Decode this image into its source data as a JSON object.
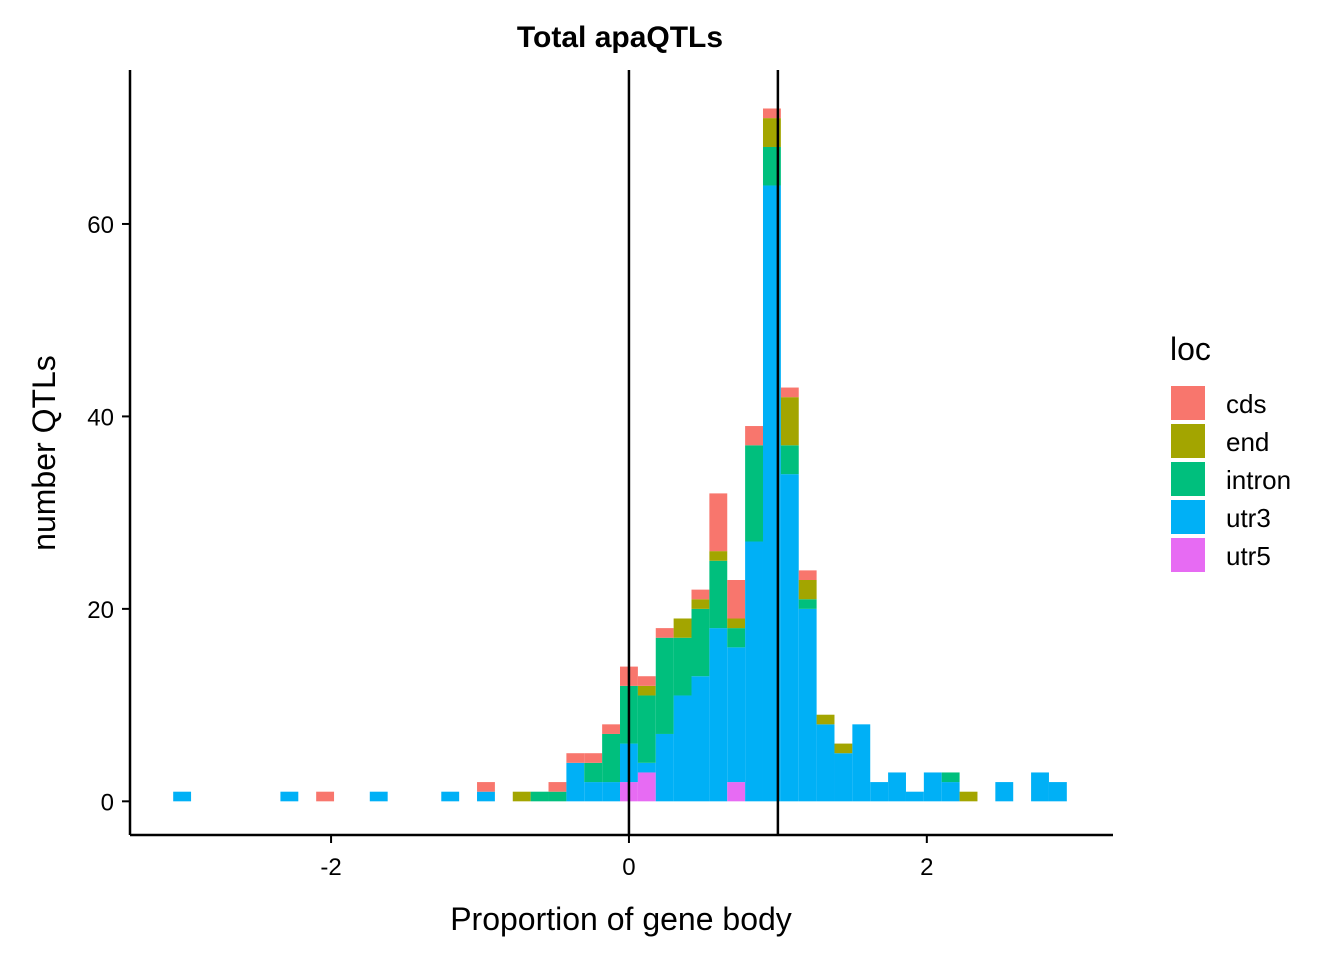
{
  "chart_data": {
    "type": "bar",
    "stacked": true,
    "title": "Total apaQTLs",
    "xlabel": "Proportion of gene body",
    "ylabel": "number QTLs",
    "xlim": [
      -3.35,
      3.25
    ],
    "ylim": [
      -3.5,
      76
    ],
    "x_ticks": [
      -2,
      0,
      2
    ],
    "x_tick_labels": [
      "-2",
      "0",
      "2"
    ],
    "y_ticks": [
      0,
      20,
      40,
      60
    ],
    "y_tick_labels": [
      "0",
      "20",
      "40",
      "60"
    ],
    "vlines": [
      0,
      1
    ],
    "bin_width": 0.12,
    "legend": {
      "title": "loc",
      "position": "right",
      "entries": [
        {
          "key": "cds",
          "label": "cds",
          "color": "#F8766D"
        },
        {
          "key": "end",
          "label": "end",
          "color": "#A3A500"
        },
        {
          "key": "intron",
          "label": "intron",
          "color": "#00BF7D"
        },
        {
          "key": "utr3",
          "label": "utr3",
          "color": "#00B0F6"
        },
        {
          "key": "utr5",
          "label": "utr5",
          "color": "#E76BF3"
        }
      ]
    },
    "stack_order": [
      "utr5",
      "utr3",
      "intron",
      "end",
      "cds"
    ],
    "bins": [
      {
        "x": -3.0,
        "utr3": 1
      },
      {
        "x": -2.28,
        "utr3": 1
      },
      {
        "x": -2.04,
        "cds": 1
      },
      {
        "x": -1.68,
        "utr3": 1
      },
      {
        "x": -1.2,
        "utr3": 1
      },
      {
        "x": -0.96,
        "utr3": 1,
        "cds": 1
      },
      {
        "x": -0.72,
        "end": 1
      },
      {
        "x": -0.6,
        "intron": 1
      },
      {
        "x": -0.48,
        "intron": 1,
        "cds": 1
      },
      {
        "x": -0.36,
        "utr3": 4,
        "cds": 1
      },
      {
        "x": -0.24,
        "utr3": 2,
        "intron": 2,
        "cds": 1
      },
      {
        "x": -0.12,
        "utr3": 2,
        "intron": 5,
        "cds": 1
      },
      {
        "x": 0.0,
        "utr5": 2,
        "utr3": 4,
        "intron": 6,
        "cds": 2
      },
      {
        "x": 0.12,
        "utr5": 3,
        "utr3": 1,
        "intron": 7,
        "end": 1,
        "cds": 1
      },
      {
        "x": 0.24,
        "utr3": 7,
        "intron": 10,
        "cds": 1
      },
      {
        "x": 0.36,
        "utr3": 11,
        "intron": 6,
        "end": 2
      },
      {
        "x": 0.48,
        "utr3": 13,
        "intron": 7,
        "end": 1,
        "cds": 1
      },
      {
        "x": 0.6,
        "utr3": 18,
        "intron": 7,
        "end": 1,
        "cds": 6
      },
      {
        "x": 0.72,
        "utr5": 2,
        "utr3": 14,
        "intron": 2,
        "end": 1,
        "cds": 4
      },
      {
        "x": 0.84,
        "utr3": 27,
        "intron": 10,
        "cds": 2
      },
      {
        "x": 0.96,
        "utr3": 64,
        "intron": 4,
        "end": 3,
        "cds": 1
      },
      {
        "x": 1.08,
        "utr3": 34,
        "intron": 3,
        "end": 5,
        "cds": 1
      },
      {
        "x": 1.2,
        "utr3": 20,
        "intron": 1,
        "end": 2,
        "cds": 1
      },
      {
        "x": 1.32,
        "utr3": 8,
        "end": 1
      },
      {
        "x": 1.44,
        "utr3": 5,
        "end": 1
      },
      {
        "x": 1.56,
        "utr3": 8
      },
      {
        "x": 1.68,
        "utr3": 2
      },
      {
        "x": 1.8,
        "utr3": 3
      },
      {
        "x": 1.92,
        "utr3": 1
      },
      {
        "x": 2.04,
        "utr3": 3
      },
      {
        "x": 2.16,
        "utr3": 2,
        "intron": 1
      },
      {
        "x": 2.28,
        "end": 1
      },
      {
        "x": 2.52,
        "utr3": 2
      },
      {
        "x": 2.76,
        "utr3": 3
      },
      {
        "x": 2.88,
        "utr3": 2
      }
    ]
  }
}
